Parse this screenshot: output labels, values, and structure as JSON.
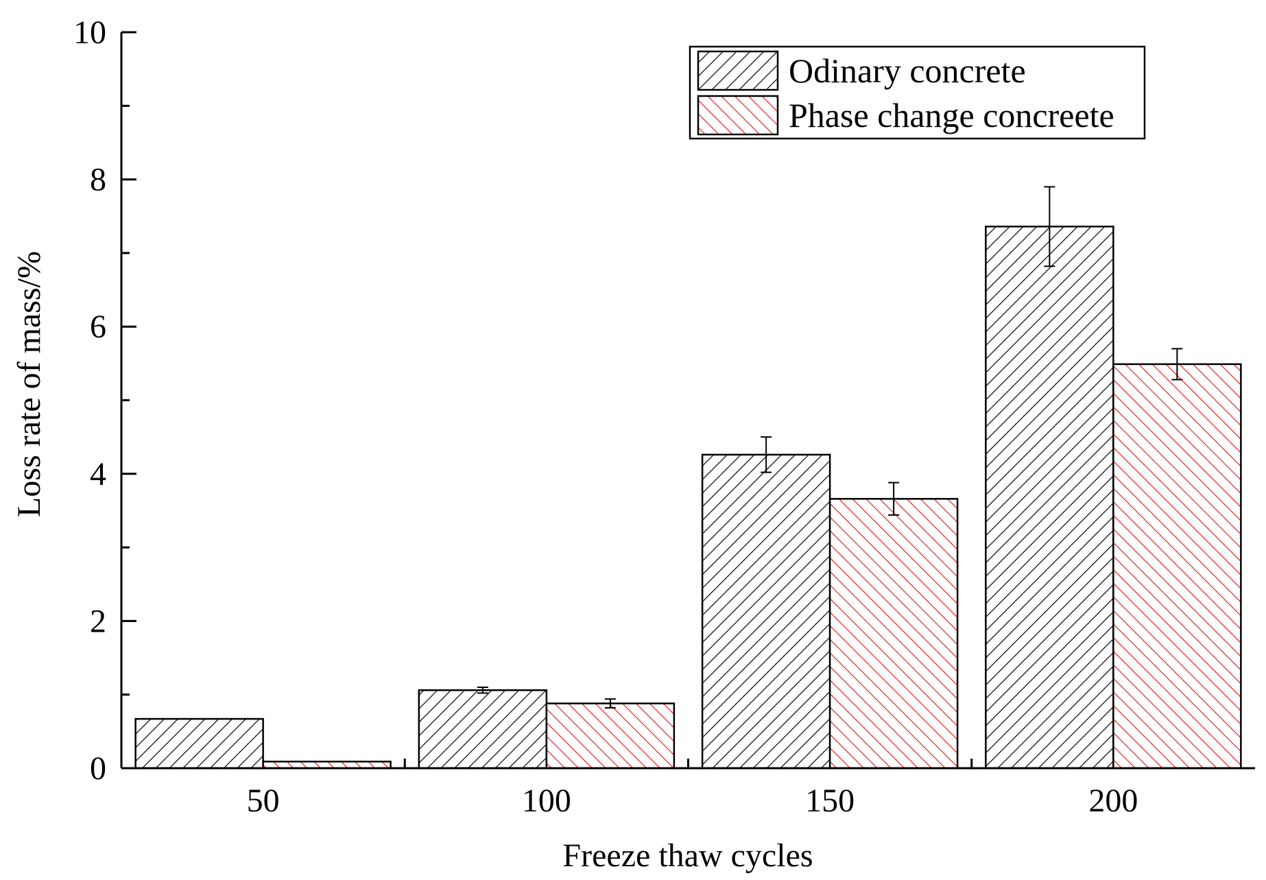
{
  "chart_data": {
    "type": "bar",
    "title": "",
    "xlabel": "Freeze thaw cycles",
    "ylabel": "Loss rate of mass/%",
    "categories": [
      "50",
      "100",
      "150",
      "200"
    ],
    "ylim": [
      0,
      10
    ],
    "yticks": [
      0,
      2,
      4,
      6,
      8,
      10
    ],
    "grid": false,
    "legend_position": "top-right",
    "series": [
      {
        "name": "Odinary concrete",
        "values": [
          0.67,
          1.06,
          4.26,
          7.36
        ],
        "errors": [
          0.0,
          0.04,
          0.24,
          0.54
        ],
        "hatch": "forward-diagonal",
        "color": "#000000",
        "fill": "#ffffff"
      },
      {
        "name": "Phase change concreete",
        "values": [
          0.09,
          0.88,
          3.66,
          5.49
        ],
        "errors": [
          0.0,
          0.06,
          0.22,
          0.21
        ],
        "hatch": "back-diagonal",
        "color": "#e8201e",
        "fill": "#ffffff"
      }
    ]
  }
}
